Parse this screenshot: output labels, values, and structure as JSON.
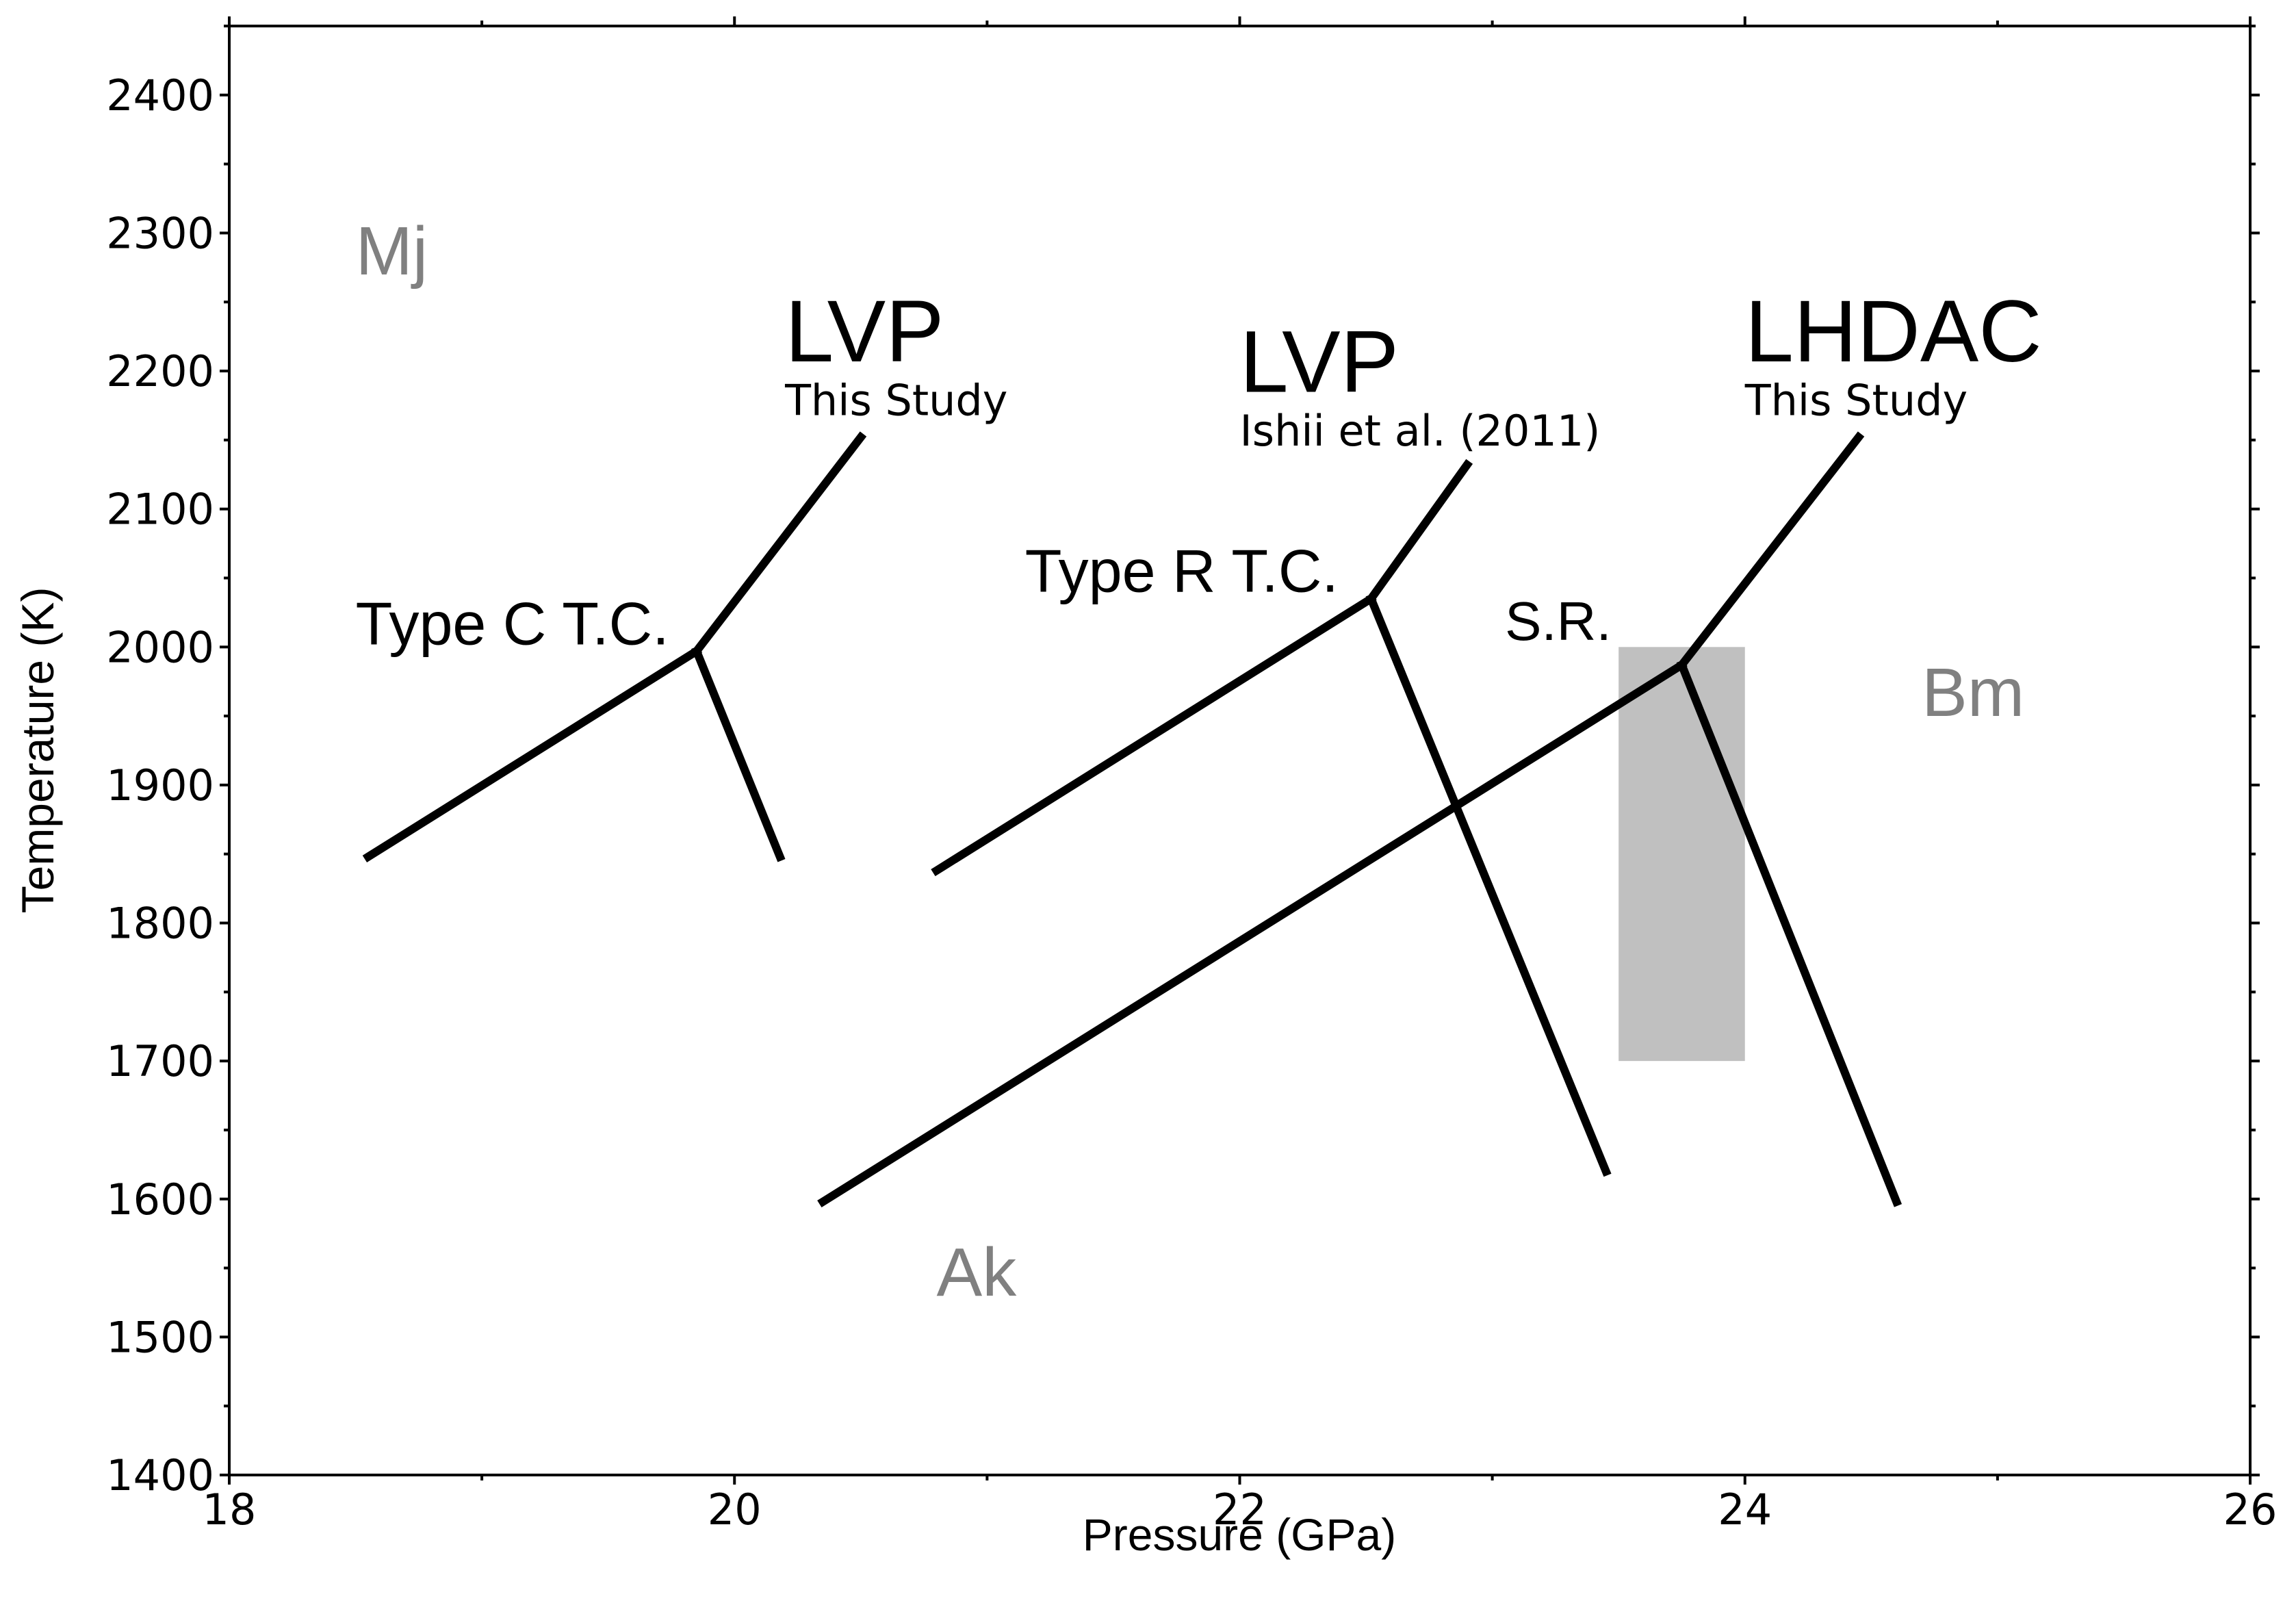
{
  "chart_data": {
    "type": "line",
    "title": "",
    "xlabel": "Pressure (GPa)",
    "ylabel": "Temperature (K)",
    "xlim": [
      18,
      26
    ],
    "ylim": [
      1400,
      2450
    ],
    "xticks": [
      18,
      20,
      22,
      24,
      26
    ],
    "yticks": [
      1400,
      1500,
      1600,
      1700,
      1800,
      1900,
      2000,
      2100,
      2200,
      2300,
      2400
    ],
    "grid": false,
    "line_color": "#000000",
    "region_color": "#808080",
    "shade_color": "#c0c0c0",
    "phase_regions": [
      {
        "label": "Mj",
        "x": 18.5,
        "y": 2270
      },
      {
        "label": "Ak",
        "x": 20.8,
        "y": 1530
      },
      {
        "label": "Bm",
        "x": 24.7,
        "y": 1950
      }
    ],
    "series": [
      {
        "name": "LVP This Study",
        "triple_point": [
          19.85,
          1997
        ],
        "segments": [
          [
            [
              18.55,
              1848
            ],
            [
              19.85,
              1997
            ]
          ],
          [
            [
              19.85,
              1997
            ],
            [
              20.5,
              2152
            ]
          ],
          [
            [
              19.85,
              1997
            ],
            [
              20.18,
              1848
            ]
          ]
        ]
      },
      {
        "name": "LVP Ishii et al. (2011)",
        "triple_point": [
          22.52,
          2035
        ],
        "segments": [
          [
            [
              20.8,
              1838
            ],
            [
              22.52,
              2035
            ]
          ],
          [
            [
              22.52,
              2035
            ],
            [
              22.9,
              2132
            ]
          ],
          [
            [
              22.52,
              2035
            ],
            [
              23.45,
              1620
            ]
          ]
        ]
      },
      {
        "name": "LHDAC This Study",
        "triple_point": [
          23.75,
          1987
        ],
        "segments": [
          [
            [
              20.35,
              1598
            ],
            [
              23.75,
              1987
            ]
          ],
          [
            [
              23.75,
              1987
            ],
            [
              24.45,
              2152
            ]
          ],
          [
            [
              23.75,
              1987
            ],
            [
              24.6,
              1598
            ]
          ]
        ]
      }
    ],
    "shaded_range": {
      "label": "S.R.",
      "x": [
        23.5,
        24.0
      ],
      "y": [
        1700,
        2000
      ]
    },
    "annotations": [
      {
        "id": "type_c",
        "text": "Type C T.C.",
        "x": 18.5,
        "y": 2002
      },
      {
        "id": "type_r",
        "text": "Type R T.C.",
        "x": 21.15,
        "y": 2040
      },
      {
        "id": "sr",
        "text": "S.R.",
        "x": 23.05,
        "y": 2005
      },
      {
        "id": "lvp1_title",
        "text": "LVP",
        "x": 20.2,
        "y": 2207
      },
      {
        "id": "lvp1_sub",
        "text": "This Study",
        "x": 20.2,
        "y": 2168
      },
      {
        "id": "lvp2_title",
        "text": "LVP",
        "x": 22.0,
        "y": 2185
      },
      {
        "id": "lvp2_sub",
        "text": "Ishii et al. (2011)",
        "x": 22.0,
        "y": 2146
      },
      {
        "id": "lhdac_title",
        "text": "LHDAC",
        "x": 24.0,
        "y": 2207
      },
      {
        "id": "lhdac_sub",
        "text": "This Study",
        "x": 24.0,
        "y": 2168
      }
    ]
  }
}
